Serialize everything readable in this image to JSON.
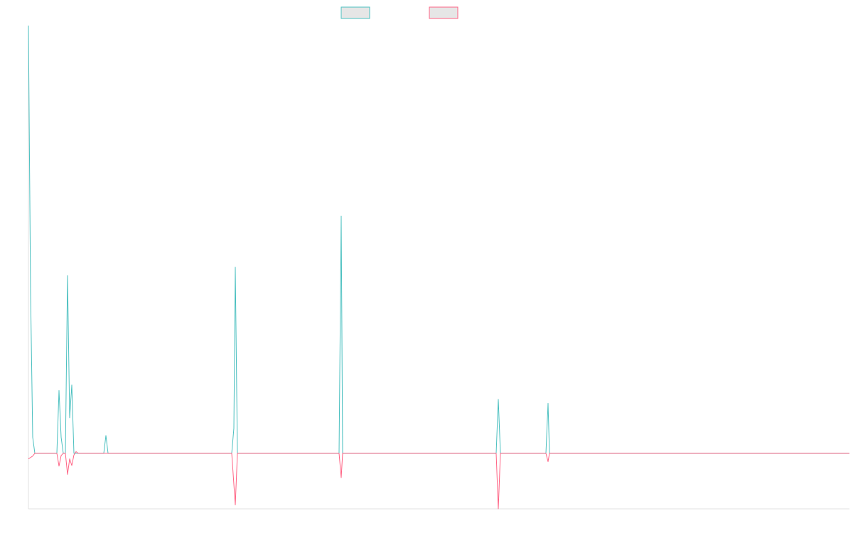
{
  "chart_data": {
    "type": "line",
    "xlim": [
      0,
      1155
    ],
    "ylim": [
      -10,
      77
    ],
    "series": [
      {
        "color": "#4bc0c0",
        "x": [
          0,
          3,
          6,
          9,
          40,
          43,
          46,
          49,
          52,
          55,
          58,
          61,
          64,
          67,
          106,
          109,
          112,
          286,
          289,
          291,
          294,
          437,
          440,
          442,
          658,
          661,
          664,
          728,
          731,
          733,
          1155
        ],
        "values": [
          77.0,
          29.2,
          2.9,
          0,
          0,
          11.3,
          2.9,
          0,
          0,
          32.0,
          6.4,
          12.3,
          0,
          0,
          0,
          3.2,
          0,
          0,
          4.5,
          33.5,
          0,
          0,
          42.7,
          0,
          0,
          9.7,
          0,
          0,
          9.0,
          0,
          0
        ]
      },
      {
        "color": "#ff6384",
        "x": [
          0,
          6,
          9,
          40,
          43,
          46,
          49,
          52,
          55,
          58,
          61,
          64,
          67,
          70,
          286,
          291,
          294,
          437,
          440,
          442,
          658,
          661,
          664,
          728,
          731,
          733,
          1155
        ],
        "values": [
          -1.0,
          -0.5,
          0,
          0,
          -2.3,
          -0.4,
          0,
          0,
          -3.8,
          -1.0,
          -2.2,
          -0.3,
          0.3,
          0,
          0,
          -9.3,
          0,
          0,
          -4.4,
          0,
          0,
          -10.0,
          0,
          0,
          -1.5,
          0,
          0
        ]
      }
    ]
  }
}
